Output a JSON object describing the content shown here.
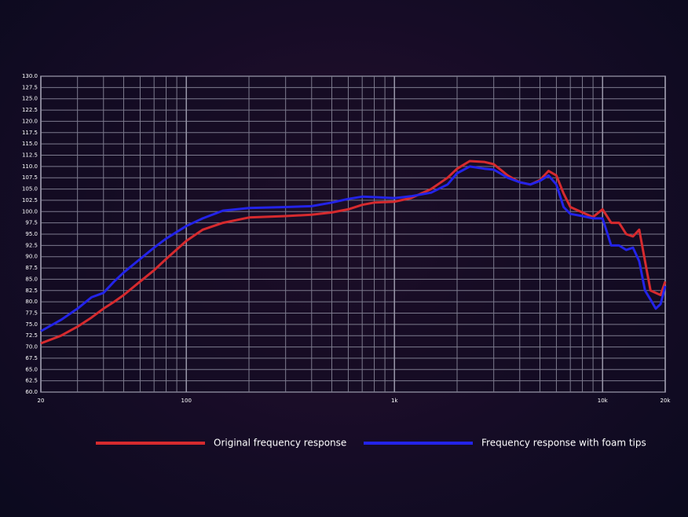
{
  "chart_data": {
    "type": "line",
    "xscale": "log",
    "grid": true,
    "x": [
      20,
      25,
      30,
      35,
      40,
      45,
      50,
      60,
      70,
      80,
      100,
      120,
      150,
      200,
      300,
      400,
      500,
      600,
      700,
      800,
      1000,
      1200,
      1500,
      1800,
      2000,
      2300,
      2700,
      3000,
      3500,
      4000,
      4500,
      5000,
      5500,
      6000,
      6500,
      7000,
      8000,
      9000,
      10000,
      11000,
      12000,
      13000,
      14000,
      15000,
      16000,
      17000,
      18000,
      19000,
      20000
    ],
    "series": [
      {
        "name": "Original frequency response",
        "color": "#d62a2e",
        "values": [
          70.8,
          72.5,
          74.5,
          76.5,
          78.5,
          80,
          81.5,
          84.5,
          87,
          89.5,
          93.5,
          96,
          97.5,
          98.7,
          99,
          99.3,
          99.8,
          100.5,
          101.5,
          102,
          102.2,
          103,
          105,
          107.5,
          109.5,
          111.2,
          111,
          110.5,
          108,
          106.5,
          106,
          107,
          109,
          108,
          104,
          101,
          99.8,
          98.8,
          100.5,
          97.5,
          97.5,
          95,
          94.5,
          96,
          89,
          82.5,
          82,
          81.5,
          84.5
        ]
      },
      {
        "name": "Frequency response with foam tips",
        "color": "#2323e8",
        "values": [
          73.5,
          76,
          78.5,
          81,
          82,
          84.5,
          86.5,
          89.5,
          92,
          94,
          96.8,
          98.5,
          100.2,
          100.8,
          101,
          101.2,
          102,
          102.8,
          103.3,
          103.2,
          103,
          103.4,
          104.2,
          106,
          108.5,
          110,
          109.5,
          109.3,
          107.5,
          106.5,
          106,
          106.8,
          108,
          106,
          101,
          99.5,
          99,
          98.5,
          98.5,
          92.5,
          92.5,
          91.5,
          92,
          89,
          82.5,
          80.5,
          78.5,
          79.5,
          83.5
        ]
      }
    ],
    "xlim": [
      20,
      20000
    ],
    "xticks": [
      20,
      100,
      {
        "value": 1000,
        "label": "1k"
      },
      {
        "value": 10000,
        "label": "10k"
      },
      {
        "value": 20000,
        "label": "20k"
      }
    ],
    "xgrid": [
      30,
      40,
      50,
      60,
      70,
      80,
      90,
      200,
      300,
      400,
      500,
      600,
      700,
      800,
      900,
      2000,
      3000,
      4000,
      5000,
      6000,
      7000,
      8000,
      9000
    ],
    "ylim": [
      60,
      130
    ],
    "yticks": [
      {
        "value": 60,
        "label": "60.0"
      },
      {
        "value": 62.5,
        "label": "62.5"
      },
      {
        "value": 65,
        "label": "65.0"
      },
      {
        "value": 67.5,
        "label": "67.5"
      },
      {
        "value": 70,
        "label": "70.0"
      },
      {
        "value": 72.5,
        "label": "72.5"
      },
      {
        "value": 75,
        "label": "75.0"
      },
      {
        "value": 77.5,
        "label": "77.5"
      },
      {
        "value": 80,
        "label": "80.0"
      },
      {
        "value": 82.5,
        "label": "82.5"
      },
      {
        "value": 85,
        "label": "85.0"
      },
      {
        "value": 87.5,
        "label": "87.5"
      },
      {
        "value": 90,
        "label": "90.0"
      },
      {
        "value": 92.5,
        "label": "92.5"
      },
      {
        "value": 95,
        "label": "95.0"
      },
      {
        "value": 97.5,
        "label": "97.5"
      },
      {
        "value": 100,
        "label": "100.0"
      },
      {
        "value": 102.5,
        "label": "102.5"
      },
      {
        "value": 105,
        "label": "105.0"
      },
      {
        "value": 107.5,
        "label": "107.5"
      },
      {
        "value": 110,
        "label": "110.0"
      },
      {
        "value": 112.5,
        "label": "112.5"
      },
      {
        "value": 115,
        "label": "115.0"
      },
      {
        "value": 117.5,
        "label": "117.5"
      },
      {
        "value": 120,
        "label": "120.0"
      },
      {
        "value": 122.5,
        "label": "122.5"
      },
      {
        "value": 125,
        "label": "125.0"
      },
      {
        "value": 127.5,
        "label": "127.5"
      },
      {
        "value": 130,
        "label": "130.0"
      }
    ]
  }
}
